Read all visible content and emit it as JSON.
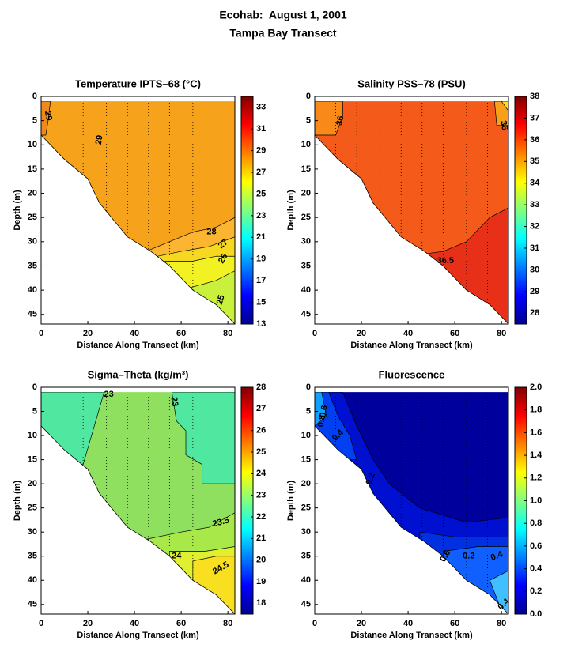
{
  "figure_title": [
    "Ecohab:  August 1, 2001",
    "Tampa Bay Transect"
  ],
  "chart_data": [
    {
      "type": "contour",
      "title": "Temperature IPTS–68 (°C)",
      "xlabel": "Distance Along Transect (km)",
      "ylabel": "Depth (m)",
      "xlim": [
        0,
        83
      ],
      "xticks": [
        0,
        20,
        40,
        60,
        80
      ],
      "ylim": [
        0,
        47
      ],
      "y_inverted": true,
      "yticks": [
        0,
        5,
        10,
        15,
        20,
        25,
        30,
        35,
        40,
        45
      ],
      "clim": [
        13,
        34
      ],
      "cticks": [
        13,
        15,
        17,
        19,
        21,
        23,
        25,
        27,
        29,
        31,
        33
      ],
      "contour_labels": [
        29,
        29,
        28,
        27,
        26,
        25
      ]
    },
    {
      "type": "contour",
      "title": "Salinity PSS–78 (PSU)",
      "xlabel": "Distance Along Transect (km)",
      "ylabel": "Depth (m)",
      "xlim": [
        0,
        83
      ],
      "xticks": [
        0,
        20,
        40,
        60,
        80
      ],
      "ylim": [
        0,
        47
      ],
      "y_inverted": true,
      "yticks": [
        0,
        5,
        10,
        15,
        20,
        25,
        30,
        35,
        40,
        45
      ],
      "clim": [
        27.5,
        38
      ],
      "cticks": [
        28,
        29,
        30,
        31,
        32,
        33,
        34,
        35,
        36,
        37,
        38
      ],
      "contour_labels": [
        36,
        36,
        36.5
      ]
    },
    {
      "type": "contour",
      "title": "Sigma–Theta (kg/m³)",
      "xlabel": "Distance Along Transect (km)",
      "ylabel": "Depth (m)",
      "xlim": [
        0,
        83
      ],
      "xticks": [
        0,
        20,
        40,
        60,
        80
      ],
      "ylim": [
        0,
        47
      ],
      "y_inverted": true,
      "yticks": [
        0,
        5,
        10,
        15,
        20,
        25,
        30,
        35,
        40,
        45
      ],
      "clim": [
        17.5,
        28
      ],
      "cticks": [
        18,
        19,
        20,
        21,
        22,
        23,
        24,
        25,
        26,
        27,
        28
      ],
      "contour_labels": [
        23,
        23,
        23.5,
        24,
        24.5
      ]
    },
    {
      "type": "contour",
      "title": "Fluorescence",
      "xlabel": "Distance Along Transect (km)",
      "ylabel": "Depth (m)",
      "xlim": [
        0,
        83
      ],
      "xticks": [
        0,
        20,
        40,
        60,
        80
      ],
      "ylim": [
        0,
        47
      ],
      "y_inverted": true,
      "yticks": [
        0,
        5,
        10,
        15,
        20,
        25,
        30,
        35,
        40,
        45
      ],
      "clim": [
        0,
        2
      ],
      "cticks": [
        {
          "value": 0,
          "label": "0.0"
        },
        0.2,
        0.4,
        0.6,
        0.8,
        {
          "value": 1,
          "label": "1.0"
        },
        1.2,
        1.4,
        1.6,
        1.8,
        {
          "value": 2,
          "label": "2.0"
        }
      ],
      "contour_labels": [
        0.6,
        0.8,
        0.4,
        0.2,
        0.6,
        0.2,
        0.4,
        0.4
      ]
    }
  ]
}
